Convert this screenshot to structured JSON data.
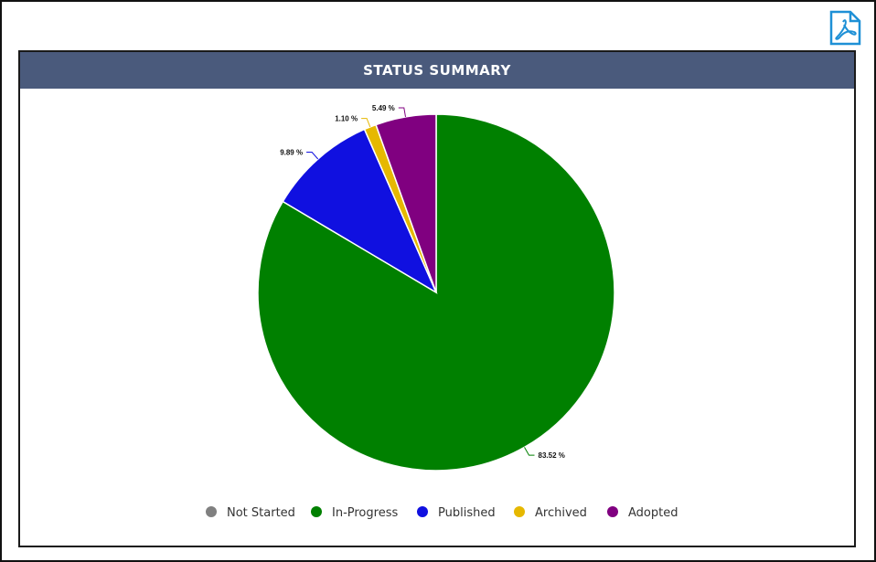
{
  "panel": {
    "title": "STATUS SUMMARY"
  },
  "icons": {
    "export": "pdf-icon"
  },
  "chart_data": {
    "type": "pie",
    "title": "STATUS SUMMARY",
    "categories": [
      "Not Started",
      "In-Progress",
      "Published",
      "Archived",
      "Adopted"
    ],
    "values": [
      0,
      83.52,
      9.89,
      1.1,
      5.49
    ],
    "labels": [
      "",
      "83.52 %",
      "9.89 %",
      "1.10 %",
      "5.49 %"
    ],
    "colors": [
      "#808080",
      "#008000",
      "#1010e0",
      "#e6b800",
      "#800080"
    ],
    "legend_position": "bottom"
  }
}
